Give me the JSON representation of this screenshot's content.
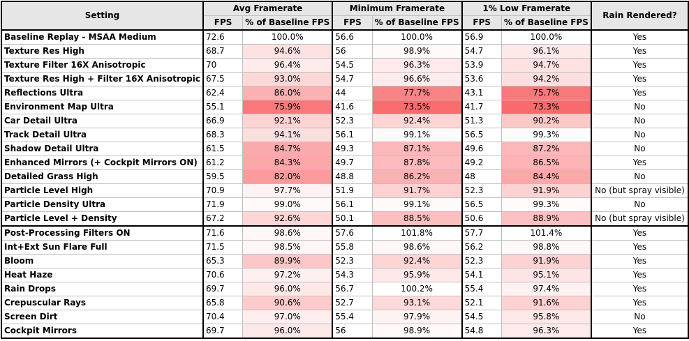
{
  "header": {
    "setting": "Setting",
    "avg": "Avg Framerate",
    "min": "Minimum Framerate",
    "low": "1% Low Framerate",
    "rain": "Rain Rendered?",
    "fps": "FPS",
    "pct": "% of Baseline FPS"
  },
  "colors": {
    "header_bg": "#e7e6e6",
    "pct_scale_low": "#f8696b",
    "pct_scale_high": "#ffffff"
  },
  "rows": [
    {
      "name": "Baseline Replay - MSAA Medium",
      "avg_fps": "72.6",
      "avg_pct": "100.0%",
      "min_fps": "56.6",
      "min_pct": "100.0%",
      "low_fps": "56.9",
      "low_pct": "100.0%",
      "rain": "Yes"
    },
    {
      "name": "Texture Res High",
      "avg_fps": "68.7",
      "avg_pct": "94.6%",
      "min_fps": "56",
      "min_pct": "98.9%",
      "low_fps": "54.7",
      "low_pct": "96.1%",
      "rain": "Yes"
    },
    {
      "name": "Texture Filter 16X Anisotropic",
      "avg_fps": "70",
      "avg_pct": "96.4%",
      "min_fps": "54.5",
      "min_pct": "96.3%",
      "low_fps": "53.9",
      "low_pct": "94.7%",
      "rain": "Yes"
    },
    {
      "name": "Texture Res High + Filter 16X Anisotropic",
      "avg_fps": "67.5",
      "avg_pct": "93.0%",
      "min_fps": "54.7",
      "min_pct": "96.6%",
      "low_fps": "53.6",
      "low_pct": "94.2%",
      "rain": "Yes"
    },
    {
      "name": "Reflections Ultra",
      "avg_fps": "62.4",
      "avg_pct": "86.0%",
      "min_fps": "44",
      "min_pct": "77.7%",
      "low_fps": "43.1",
      "low_pct": "75.7%",
      "rain": "Yes"
    },
    {
      "name": "Environment Map Ultra",
      "avg_fps": "55.1",
      "avg_pct": "75.9%",
      "min_fps": "41.6",
      "min_pct": "73.5%",
      "low_fps": "41.7",
      "low_pct": "73.3%",
      "rain": "No"
    },
    {
      "name": "Car Detail Ultra",
      "avg_fps": "66.9",
      "avg_pct": "92.1%",
      "min_fps": "52.3",
      "min_pct": "92.4%",
      "low_fps": "51.3",
      "low_pct": "90.2%",
      "rain": "No"
    },
    {
      "name": "Track Detail Ultra",
      "avg_fps": "68.3",
      "avg_pct": "94.1%",
      "min_fps": "56.1",
      "min_pct": "99.1%",
      "low_fps": "56.5",
      "low_pct": "99.3%",
      "rain": "No"
    },
    {
      "name": "Shadow Detail Ultra",
      "avg_fps": "61.5",
      "avg_pct": "84.7%",
      "min_fps": "49.3",
      "min_pct": "87.1%",
      "low_fps": "49.6",
      "low_pct": "87.2%",
      "rain": "No"
    },
    {
      "name": "Enhanced Mirrors (+ Cockpit Mirrors ON)",
      "avg_fps": "61.2",
      "avg_pct": "84.3%",
      "min_fps": "49.7",
      "min_pct": "87.8%",
      "low_fps": "49.2",
      "low_pct": "86.5%",
      "rain": "Yes"
    },
    {
      "name": "Detailed Grass High",
      "avg_fps": "59.5",
      "avg_pct": "82.0%",
      "min_fps": "48.8",
      "min_pct": "86.2%",
      "low_fps": "48",
      "low_pct": "84.4%",
      "rain": "No"
    },
    {
      "name": "Particle Level High",
      "avg_fps": "70.9",
      "avg_pct": "97.7%",
      "min_fps": "51.9",
      "min_pct": "91.7%",
      "low_fps": "52.3",
      "low_pct": "91.9%",
      "rain": "No (but spray visible)"
    },
    {
      "name": "Particle Density Ultra",
      "avg_fps": "71.9",
      "avg_pct": "99.0%",
      "min_fps": "56.1",
      "min_pct": "99.1%",
      "low_fps": "56.5",
      "low_pct": "99.3%",
      "rain": "No"
    },
    {
      "name": "Particle Level + Density",
      "avg_fps": "67.2",
      "avg_pct": "92.6%",
      "min_fps": "50.1",
      "min_pct": "88.5%",
      "low_fps": "50.6",
      "low_pct": "88.9%",
      "rain": "No (but spray visible)"
    },
    {
      "name": "Post-Processing Filters ON",
      "avg_fps": "71.6",
      "avg_pct": "98.6%",
      "min_fps": "57.6",
      "min_pct": "101.8%",
      "low_fps": "57.7",
      "low_pct": "101.4%",
      "rain": "Yes",
      "group_start": true
    },
    {
      "name": "Int+Ext Sun Flare Full",
      "avg_fps": "71.5",
      "avg_pct": "98.5%",
      "min_fps": "55.8",
      "min_pct": "98.6%",
      "low_fps": "56.2",
      "low_pct": "98.8%",
      "rain": "Yes"
    },
    {
      "name": "Bloom",
      "avg_fps": "65.3",
      "avg_pct": "89.9%",
      "min_fps": "52.3",
      "min_pct": "92.4%",
      "low_fps": "52.3",
      "low_pct": "91.9%",
      "rain": "Yes"
    },
    {
      "name": "Heat Haze",
      "avg_fps": "70.6",
      "avg_pct": "97.2%",
      "min_fps": "54.3",
      "min_pct": "95.9%",
      "low_fps": "54.1",
      "low_pct": "95.1%",
      "rain": "Yes"
    },
    {
      "name": "Rain Drops",
      "avg_fps": "69.7",
      "avg_pct": "96.0%",
      "min_fps": "56.7",
      "min_pct": "100.2%",
      "low_fps": "55.4",
      "low_pct": "97.4%",
      "rain": "Yes"
    },
    {
      "name": "Crepuscular Rays",
      "avg_fps": "65.8",
      "avg_pct": "90.6%",
      "min_fps": "52.7",
      "min_pct": "93.1%",
      "low_fps": "52.1",
      "low_pct": "91.6%",
      "rain": "Yes"
    },
    {
      "name": "Screen Dirt",
      "avg_fps": "70.4",
      "avg_pct": "97.0%",
      "min_fps": "55.4",
      "min_pct": "97.9%",
      "low_fps": "54.5",
      "low_pct": "95.8%",
      "rain": "No"
    },
    {
      "name": "Cockpit Mirrors",
      "avg_fps": "69.7",
      "avg_pct": "96.0%",
      "min_fps": "56",
      "min_pct": "98.9%",
      "low_fps": "54.8",
      "low_pct": "96.3%",
      "rain": "Yes"
    }
  ]
}
